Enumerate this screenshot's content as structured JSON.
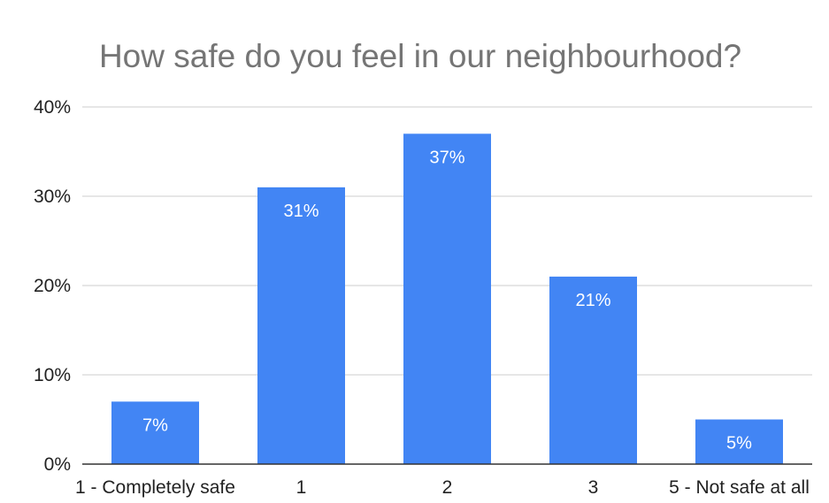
{
  "chart_data": {
    "type": "bar",
    "title": "How safe do you feel in our neighbourhood?",
    "xlabel": "",
    "ylabel": "",
    "categories": [
      "1 - Completely safe",
      "1",
      "2",
      "3",
      "5 - Not safe at all"
    ],
    "values": [
      7,
      31,
      37,
      21,
      5
    ],
    "data_labels": [
      "7%",
      "31%",
      "37%",
      "21%",
      "5%"
    ],
    "ylim": [
      0,
      40
    ],
    "y_ticks": [
      {
        "value": 0,
        "label": "0%"
      },
      {
        "value": 10,
        "label": "10%"
      },
      {
        "value": 20,
        "label": "20%"
      },
      {
        "value": 30,
        "label": "30%"
      },
      {
        "value": 40,
        "label": "40%"
      }
    ],
    "grid": true,
    "legend": "none",
    "bar_color": "#4285f4",
    "label_color": "#ffffff",
    "title_color": "#757575"
  }
}
